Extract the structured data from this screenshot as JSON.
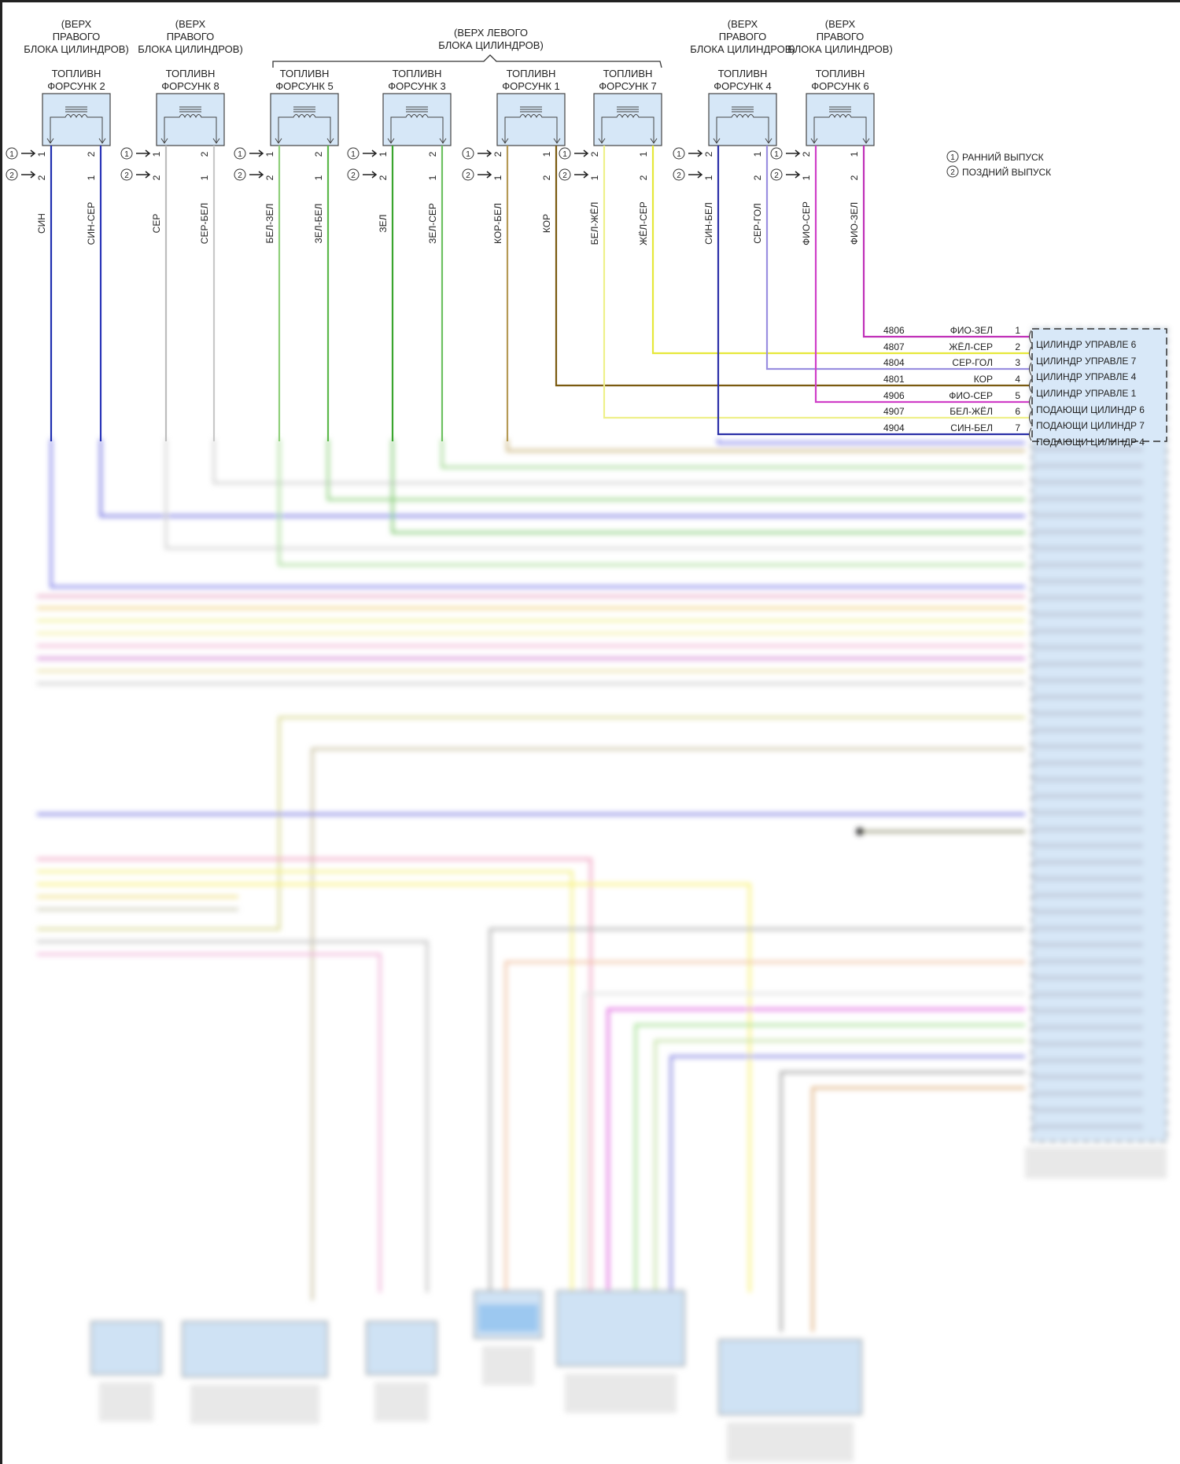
{
  "injectors": [
    {
      "location": [
        "(ВЕРХ",
        "ПРАВОГО",
        "БЛОКА ЦИЛИНДРОВ)"
      ],
      "name": [
        "ТОПЛИВН",
        "ФОРСУНК 2"
      ],
      "left_pins": [
        "1",
        "2"
      ],
      "right_pins": [
        "2",
        "1"
      ],
      "left_wire": "СИН",
      "right_wire": "СИН-СЕР",
      "left_color": "#1f2fb0",
      "right_color": "#2a35b8"
    },
    {
      "location": [
        "(ВЕРХ",
        "ПРАВОГО",
        "БЛОКА ЦИЛИНДРОВ)"
      ],
      "name": [
        "ТОПЛИВН",
        "ФОРСУНК 8"
      ],
      "left_pins": [
        "1",
        "2"
      ],
      "right_pins": [
        "2",
        "1"
      ],
      "left_wire": "СЕР",
      "right_wire": "СЕР-БЕЛ",
      "left_color": "#bdbdbd",
      "right_color": "#c8c8c8"
    },
    {
      "location": null,
      "name": [
        "ТОПЛИВН",
        "ФОРСУНК 5"
      ],
      "left_pins": [
        "1",
        "2"
      ],
      "right_pins": [
        "2",
        "1"
      ],
      "left_wire": "БЕЛ-ЗЕЛ",
      "right_wire": "ЗЕЛ-БЕЛ",
      "left_color": "#8fcf7a",
      "right_color": "#5cb84a"
    },
    {
      "location": null,
      "name": [
        "ТОПЛИВН",
        "ФОРСУНК 3"
      ],
      "left_pins": [
        "1",
        "2"
      ],
      "right_pins": [
        "2",
        "1"
      ],
      "left_wire": "ЗЕЛ",
      "right_wire": "ЗЕЛ-СЕР",
      "left_color": "#3aa52e",
      "right_color": "#6cc060"
    },
    {
      "location": null,
      "name": [
        "ТОПЛИВН",
        "ФОРСУНК 1"
      ],
      "left_pins": [
        "2",
        "1"
      ],
      "right_pins": [
        "1",
        "2"
      ],
      "left_wire": "КОР-БЕЛ",
      "right_wire": "КОР",
      "left_color": "#b59a55",
      "right_color": "#7a5a10"
    },
    {
      "location": null,
      "name": [
        "ТОПЛИВН",
        "ФОРСУНК 7"
      ],
      "left_pins": [
        "2",
        "1"
      ],
      "right_pins": [
        "1",
        "2"
      ],
      "left_wire": "БЕЛ-ЖЁЛ",
      "right_wire": "ЖЁЛ-СЕР",
      "left_color": "#eef08a",
      "right_color": "#e6e83a"
    },
    {
      "location": [
        "(ВЕРХ",
        "ПРАВОГО",
        "БЛОКА ЦИЛИНДРОВ)"
      ],
      "name": [
        "ТОПЛИВН",
        "ФОРСУНК 4"
      ],
      "left_pins": [
        "2",
        "1"
      ],
      "right_pins": [
        "1",
        "2"
      ],
      "left_wire": "СИН-БЕЛ",
      "right_wire": "СЕР-ГОЛ",
      "left_color": "#2a2fa8",
      "right_color": "#9a8fe0"
    },
    {
      "location": [
        "(ВЕРХ",
        "ПРАВОГО",
        "БЛОКА ЦИЛИНДРОВ)"
      ],
      "name": [
        "ТОПЛИВН",
        "ФОРСУНК 6"
      ],
      "left_pins": [
        "2",
        "1"
      ],
      "right_pins": [
        "1",
        "2"
      ],
      "left_wire": "ФИО-СЕР",
      "right_wire": "ФИО-ЗЕЛ",
      "left_color": "#d040c8",
      "right_color": "#c030b8"
    }
  ],
  "left_bank_group": [
    "(ВЕРХ ЛЕВОГО",
    "БЛОКА ЦИЛИНДРОВ)"
  ],
  "markers": {
    "early": "①",
    "late": "②"
  },
  "legend": [
    {
      "symbol": "①",
      "text": "РАННИЙ ВЫПУСК"
    },
    {
      "symbol": "②",
      "text": "ПОЗДНИЙ ВЫПУСК"
    }
  ],
  "connector": {
    "fill": "#d8e8f8",
    "rows": [
      {
        "circuit": "4806",
        "color": "ФИО-ЗЕЛ",
        "pin": "1",
        "function": "ЦИЛИНДР УПРАВЛЕ 6"
      },
      {
        "circuit": "4807",
        "color": "ЖЁЛ-СЕР",
        "pin": "2",
        "function": "ЦИЛИНДР УПРАВЛЕ 7"
      },
      {
        "circuit": "4804",
        "color": "СЕР-ГОЛ",
        "pin": "3",
        "function": "ЦИЛИНДР УПРАВЛЕ 4"
      },
      {
        "circuit": "4801",
        "color": "КОР",
        "pin": "4",
        "function": "ЦИЛИНДР УПРАВЛЕ 1"
      },
      {
        "circuit": "4906",
        "color": "ФИО-СЕР",
        "pin": "5",
        "function": "ПОДАЮЩИ ЦИЛИНДР 6"
      },
      {
        "circuit": "4907",
        "color": "БЕЛ-ЖЁЛ",
        "pin": "6",
        "function": "ПОДАЮЩИ ЦИЛИНДР 7"
      },
      {
        "circuit": "4904",
        "color": "СИН-БЕЛ",
        "pin": "7",
        "function": "ПОДАЮЩИ ЦИЛИНДР 4"
      }
    ]
  }
}
